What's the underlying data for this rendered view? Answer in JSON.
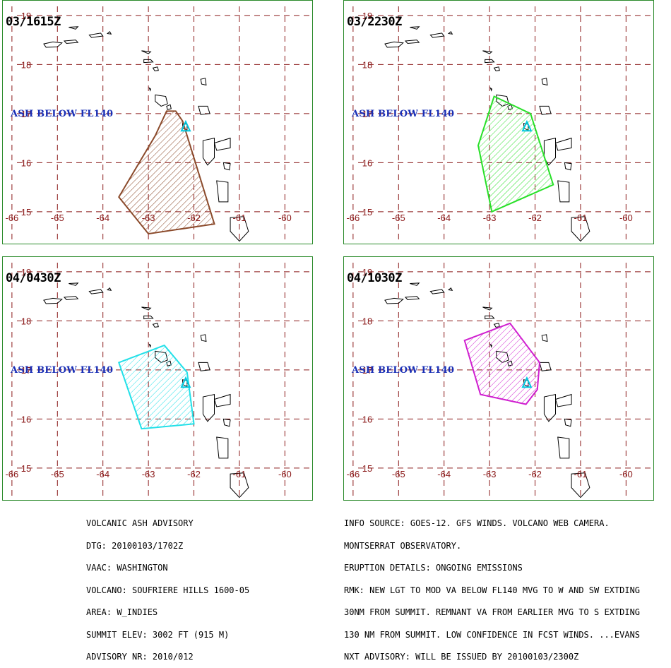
{
  "axes": {
    "lon_ticks": [
      -66,
      -65,
      -64,
      -63,
      -62,
      -61,
      -60
    ],
    "lat_ticks": [
      15,
      16,
      17,
      18,
      19
    ],
    "lon_range": [
      -66.2,
      -59.4
    ],
    "lat_range": [
      14.35,
      19.3
    ]
  },
  "volcano": {
    "name": "SOUFRIERE HILLS",
    "lon": -62.18,
    "lat": 16.72
  },
  "colors": {
    "grid": "#8b1a1a",
    "tick_label": "#8b1a1a",
    "border": "#2a8a2a",
    "coast": "#000000",
    "volcano": "#00c8e0",
    "label": "#1a2fb5"
  },
  "panels": [
    {
      "title": "03/1615Z",
      "label": "ASH BELOW FL140",
      "color": "#8b4a2b",
      "polygon": [
        [
          -62.6,
          17.05
        ],
        [
          -62.4,
          17.05
        ],
        [
          -62.25,
          16.85
        ],
        [
          -61.55,
          14.75
        ],
        [
          -63.0,
          14.55
        ],
        [
          -63.65,
          15.3
        ],
        [
          -62.85,
          16.55
        ]
      ]
    },
    {
      "title": "03/2230Z",
      "label": "ASH BELOW FL140",
      "color": "#28e028",
      "polygon": [
        [
          -62.9,
          17.35
        ],
        [
          -62.1,
          17.0
        ],
        [
          -61.6,
          15.55
        ],
        [
          -62.95,
          15.0
        ],
        [
          -63.25,
          16.35
        ]
      ]
    },
    {
      "title": "04/0430Z",
      "label": "ASH BELOW FL140",
      "color": "#22e0e8",
      "polygon": [
        [
          -63.65,
          17.15
        ],
        [
          -62.65,
          17.5
        ],
        [
          -62.15,
          16.95
        ],
        [
          -62.0,
          15.9
        ],
        [
          -63.15,
          15.8
        ]
      ]
    },
    {
      "title": "04/1030Z",
      "label": "ASH BELOW FL140",
      "color": "#d020d0",
      "polygon": [
        [
          -63.55,
          17.6
        ],
        [
          -62.55,
          17.95
        ],
        [
          -61.9,
          17.15
        ],
        [
          -61.95,
          16.6
        ],
        [
          -62.2,
          16.3
        ],
        [
          -63.2,
          16.5
        ]
      ]
    }
  ],
  "left_text": [
    "VOLCANIC ASH ADVISORY",
    "DTG: 20100103/1702Z",
    "VAAC: WASHINGTON",
    "VOLCANO: SOUFRIERE HILLS 1600-05",
    "AREA: W_INDIES",
    "SUMMIT ELEV: 3002 FT (915 M)",
    "ADVISORY NR: 2010/012"
  ],
  "right_text": [
    "INFO SOURCE: GOES-12. GFS WINDS. VOLCANO WEB CAMERA.",
    "MONTSERRAT OBSERVATORY.",
    "ERUPTION DETAILS: ONGOING EMISSIONS",
    "RMK: NEW LGT TO MOD VA BELOW FL140 MVG TO W AND SW EXTDING",
    "30NM FROM SUMMIT. REMNANT VA FROM EARLIER MVG TO S EXTDING",
    "130 NM FROM SUMMIT. LOW CONFIDENCE IN FCST WINDS. ...EVANS",
    "NXT ADVISORY: WILL BE ISSUED BY 20100103/2300Z"
  ]
}
